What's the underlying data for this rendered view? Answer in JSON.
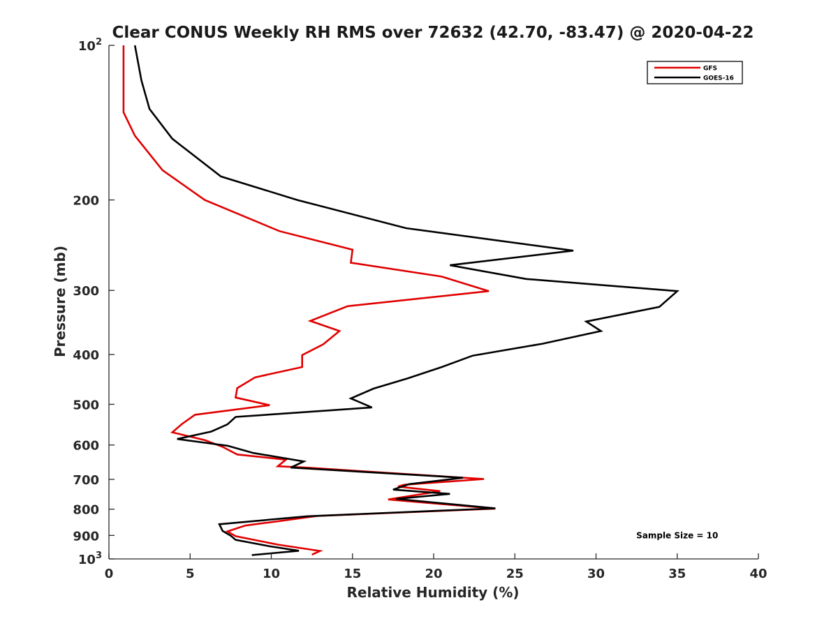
{
  "chart_data": {
    "type": "line",
    "title": "Clear CONUS Weekly RH RMS over 72632 (42.70, -83.47) @ 2020-04-22",
    "xlabel": "Relative Humidity (%)",
    "ylabel": "Pressure (mb)",
    "xlim": [
      0,
      40
    ],
    "ylim": [
      100,
      1000
    ],
    "y_scale": "log",
    "y_reversed": true,
    "grid": false,
    "legend_position": "top-right",
    "x_ticks": [
      "0",
      "5",
      "10",
      "15",
      "20",
      "25",
      "30",
      "35",
      "40"
    ],
    "y_ticks": [
      {
        "value": 100,
        "label": "10",
        "sup": "2"
      },
      {
        "value": 200,
        "label": "200",
        "sup": ""
      },
      {
        "value": 300,
        "label": "300",
        "sup": ""
      },
      {
        "value": 400,
        "label": "400",
        "sup": ""
      },
      {
        "value": 500,
        "label": "500",
        "sup": ""
      },
      {
        "value": 600,
        "label": "600",
        "sup": ""
      },
      {
        "value": 700,
        "label": "700",
        "sup": ""
      },
      {
        "value": 800,
        "label": "800",
        "sup": ""
      },
      {
        "value": 900,
        "label": "900",
        "sup": ""
      },
      {
        "value": 1000,
        "label": "10",
        "sup": "3"
      }
    ],
    "series": [
      {
        "name": "GFS",
        "color": "#e00000",
        "points": [
          [
            0.9,
            100
          ],
          [
            0.9,
            135
          ],
          [
            1.6,
            150
          ],
          [
            3.3,
            175
          ],
          [
            5.9,
            200
          ],
          [
            10.5,
            230
          ],
          [
            15.0,
            250
          ],
          [
            14.9,
            265
          ],
          [
            20.5,
            282
          ],
          [
            23.4,
            301
          ],
          [
            14.7,
            322
          ],
          [
            12.4,
            344
          ],
          [
            14.2,
            360
          ],
          [
            13.2,
            382
          ],
          [
            11.9,
            401
          ],
          [
            11.9,
            423
          ],
          [
            9.0,
            443
          ],
          [
            7.9,
            465
          ],
          [
            7.8,
            485
          ],
          [
            9.9,
            502
          ],
          [
            5.3,
            524
          ],
          [
            4.5,
            546
          ],
          [
            3.9,
            567
          ],
          [
            5.9,
            587
          ],
          [
            7.0,
            605
          ],
          [
            7.9,
            626
          ],
          [
            10.9,
            641
          ],
          [
            10.4,
            660
          ],
          [
            12.1,
            664
          ],
          [
            23.1,
            699
          ],
          [
            18.2,
            717
          ],
          [
            17.8,
            723
          ],
          [
            20.4,
            738
          ],
          [
            17.2,
            766
          ],
          [
            23.8,
            798
          ],
          [
            12.8,
            825
          ],
          [
            10.6,
            843
          ],
          [
            8.4,
            861
          ],
          [
            7.3,
            884
          ],
          [
            7.8,
            903
          ],
          [
            10.4,
            938
          ],
          [
            13.0,
            965
          ],
          [
            12.5,
            981
          ]
        ]
      },
      {
        "name": "GOES-16",
        "color": "#000000",
        "points": [
          [
            1.6,
            100
          ],
          [
            2.0,
            117
          ],
          [
            2.5,
            133
          ],
          [
            3.9,
            152
          ],
          [
            6.9,
            180
          ],
          [
            11.6,
            200
          ],
          [
            18.3,
            227
          ],
          [
            28.6,
            251
          ],
          [
            21.0,
            268
          ],
          [
            25.7,
            285
          ],
          [
            35.0,
            301
          ],
          [
            33.9,
            323
          ],
          [
            29.4,
            345
          ],
          [
            30.3,
            360
          ],
          [
            26.7,
            381
          ],
          [
            22.4,
            402
          ],
          [
            20.5,
            423
          ],
          [
            18.4,
            445
          ],
          [
            16.3,
            466
          ],
          [
            14.9,
            487
          ],
          [
            16.2,
            507
          ],
          [
            7.8,
            529
          ],
          [
            7.3,
            547
          ],
          [
            6.3,
            565
          ],
          [
            4.2,
            584
          ],
          [
            7.3,
            602
          ],
          [
            8.9,
            622
          ],
          [
            12.0,
            646
          ],
          [
            11.2,
            664
          ],
          [
            21.8,
            695
          ],
          [
            18.5,
            715
          ],
          [
            17.5,
            733
          ],
          [
            21.0,
            747
          ],
          [
            17.7,
            764
          ],
          [
            23.8,
            797
          ],
          [
            12.2,
            826
          ],
          [
            6.8,
            856
          ],
          [
            7.0,
            882
          ],
          [
            7.5,
            901
          ],
          [
            7.8,
            918
          ],
          [
            9.9,
            945
          ],
          [
            11.7,
            964
          ],
          [
            8.8,
            983
          ]
        ]
      }
    ],
    "annotations": [
      {
        "text": "Sample Size = 10",
        "x": 35.0,
        "y": 900
      }
    ]
  }
}
